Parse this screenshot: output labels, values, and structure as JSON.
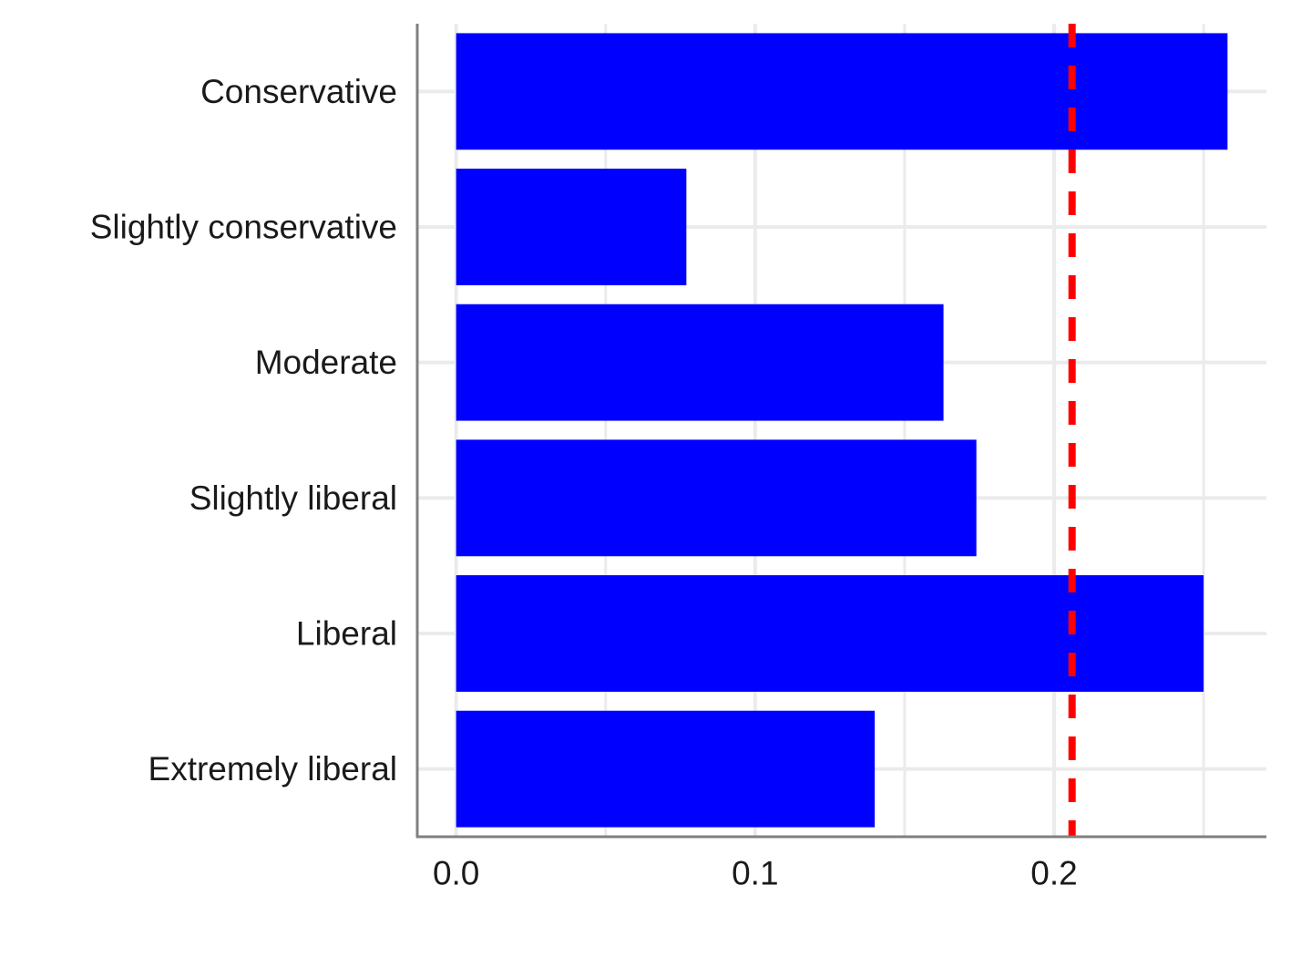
{
  "chart_data": {
    "type": "bar",
    "orientation": "horizontal",
    "categories": [
      "Conservative",
      "Slightly conservative",
      "Moderate",
      "Slightly liberal",
      "Liberal",
      "Extremely liberal"
    ],
    "values": [
      0.258,
      0.077,
      0.163,
      0.174,
      0.25,
      0.14
    ],
    "xticks": [
      "0.0",
      "0.1",
      "0.2"
    ],
    "xtick_values": [
      0.0,
      0.1,
      0.2
    ],
    "xlim": [
      -0.013,
      0.271
    ],
    "reference_line": {
      "value": 0.206,
      "style": "dashed",
      "color": "#ff0000"
    },
    "bar_color": "#0000ff",
    "grid": true,
    "title": "",
    "xlabel": "",
    "ylabel": ""
  }
}
